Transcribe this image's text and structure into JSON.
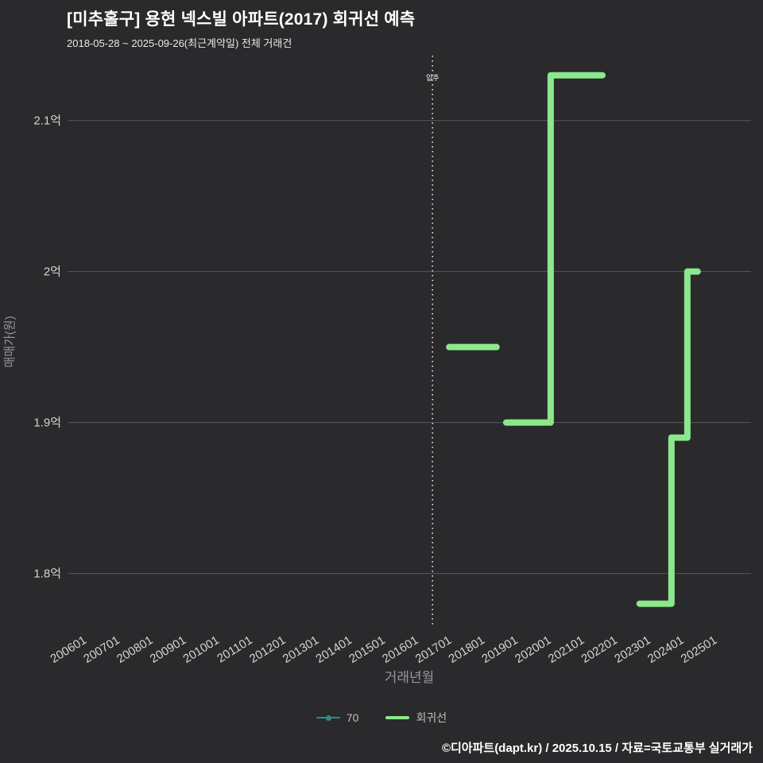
{
  "header": {
    "title": "[미추홀구] 용현 넥스빌 아파트(2017) 회귀선 예측",
    "subtitle": "2018-05-28 ~ 2025-09-26(최근계약일) 전체 거래건"
  },
  "footer": {
    "text": "©디아파트(dapt.kr) / 2025.10.15 / 자료=국토교통부 실거래가"
  },
  "legend": {
    "items": [
      {
        "label": "70",
        "color": "#2e8b8b",
        "marker": "line-dot"
      },
      {
        "label": "회귀선",
        "color": "#8ce88c",
        "marker": "line"
      }
    ]
  },
  "chart_data": {
    "type": "line",
    "title": "[미추홀구] 용현 넥스빌 아파트(2017) 회귀선 예측",
    "subtitle": "2018-05-28 ~ 2025-09-26(최근계약일) 전체 거래건",
    "xlabel": "거래년월",
    "ylabel": "매매가(원)",
    "x_ticks": [
      "200601",
      "200701",
      "200801",
      "200901",
      "201001",
      "201101",
      "201201",
      "201301",
      "201401",
      "201501",
      "201601",
      "201701",
      "201801",
      "201901",
      "202001",
      "202101",
      "202201",
      "202301",
      "202401",
      "202501"
    ],
    "y_ticks": [
      {
        "label": "2.1억",
        "value": 2.1
      },
      {
        "label": "2억",
        "value": 2.0
      },
      {
        "label": "1.9억",
        "value": 1.9
      },
      {
        "label": "1.8억",
        "value": 1.8
      }
    ],
    "xlim": [
      2005.5,
      2026.1
    ],
    "ylim": [
      1.764,
      2.143
    ],
    "grid": "horizontal",
    "legend_position": "bottom-center",
    "vline": {
      "x": 2016.5,
      "label": "입주",
      "style": "dotted"
    },
    "colors": {
      "background": "#2a2a2d",
      "grid": "#57575b",
      "tick": "#d4d4d4",
      "axis_label": "#97979b",
      "vline": "#efefef",
      "title": "#ffffff"
    },
    "series": [
      {
        "name": "70",
        "color": "#2e8b8b",
        "width": 2,
        "segments": []
      },
      {
        "name": "회귀선",
        "color": "#8ce88c",
        "width": 8,
        "segments": [
          [
            [
              2017.0,
              1.95
            ],
            [
              2018.43,
              1.95
            ]
          ],
          [
            [
              2018.72,
              1.9
            ],
            [
              2020.06,
              1.9
            ],
            [
              2020.06,
              2.13
            ],
            [
              2021.62,
              2.13
            ]
          ],
          [
            [
              2022.74,
              1.78
            ],
            [
              2023.7,
              1.78
            ],
            [
              2023.7,
              1.89
            ],
            [
              2024.18,
              1.89
            ],
            [
              2024.18,
              2.0
            ],
            [
              2024.49,
              2.0
            ]
          ]
        ]
      }
    ]
  }
}
